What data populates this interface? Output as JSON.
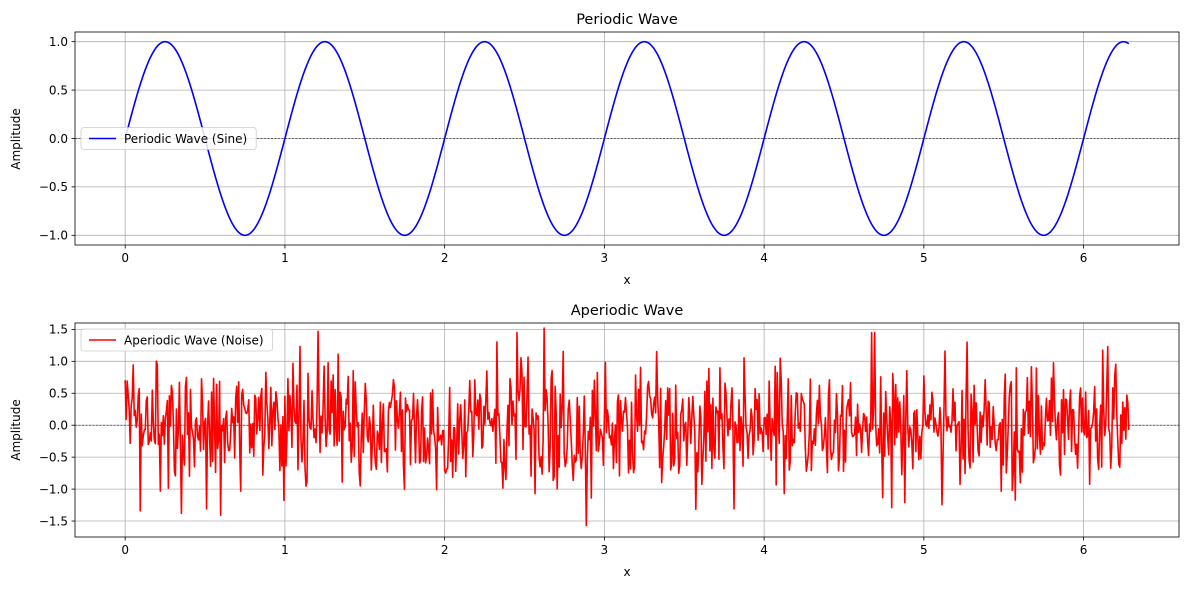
{
  "chart_data": [
    {
      "type": "line",
      "title": "Periodic Wave",
      "xlabel": "x",
      "ylabel": "Amplitude",
      "xlim": [
        -0.3141,
        6.5973
      ],
      "ylim": [
        -1.1,
        1.1
      ],
      "xticks": [
        "0",
        "1",
        "2",
        "3",
        "4",
        "5",
        "6"
      ],
      "yticks": [
        "−1.0",
        "−0.5",
        "0.0",
        "0.5",
        "1.0"
      ],
      "grid": true,
      "zero_line": true,
      "legend_position": "center-left",
      "series": [
        {
          "name": "Periodic Wave (Sine)",
          "color": "#0000ff",
          "function": "sin(2*pi*x)",
          "x_range": [
            0,
            6.2832
          ],
          "n_points": 1000
        }
      ]
    },
    {
      "type": "line",
      "title": "Aperiodic Wave",
      "xlabel": "x",
      "ylabel": "Amplitude",
      "xlim": [
        -0.3141,
        6.5973
      ],
      "ylim": [
        -1.75,
        1.6
      ],
      "xticks": [
        "0",
        "1",
        "2",
        "3",
        "4",
        "5",
        "6"
      ],
      "yticks": [
        "−1.5",
        "−1.0",
        "−0.5",
        "0.0",
        "0.5",
        "1.0",
        "1.5"
      ],
      "grid": true,
      "zero_line": true,
      "legend_position": "upper-left",
      "series": [
        {
          "name": "Aperiodic Wave (Noise)",
          "color": "#ff0000",
          "description": "random noise approximately normal, mean 0, std 0.5",
          "x_range": [
            0,
            6.2832
          ],
          "n_points": 1000,
          "y_min": -1.57,
          "y_max": 1.52,
          "notable_points": [
            {
              "x": 1.21,
              "y": 1.47
            },
            {
              "x": 2.62,
              "y": 1.52
            },
            {
              "x": 2.89,
              "y": -1.57
            },
            {
              "x": 0.35,
              "y": -1.38
            },
            {
              "x": 0.51,
              "y": -1.31
            },
            {
              "x": 0.6,
              "y": -1.41
            },
            {
              "x": 5.27,
              "y": 1.3
            },
            {
              "x": 6.15,
              "y": 1.23
            },
            {
              "x": 3.81,
              "y": -1.31
            },
            {
              "x": 4.8,
              "y": -1.29
            }
          ]
        }
      ]
    }
  ]
}
